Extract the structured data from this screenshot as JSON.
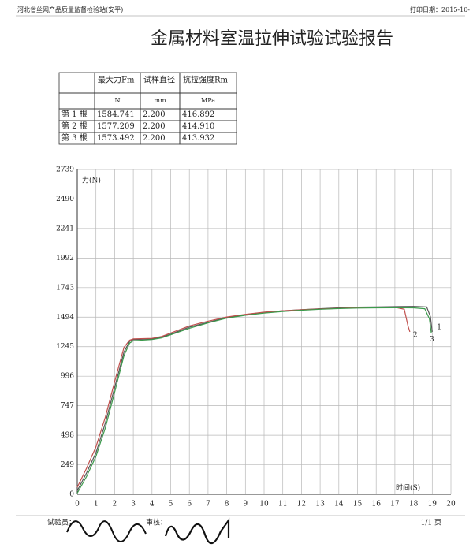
{
  "header": {
    "org": "河北省丝网产品质量监督检验站(安平)",
    "print_date": "打印日期：2015-10-"
  },
  "title": "金属材料室温拉伸试验试验报告",
  "table": {
    "header": [
      "最大力Fm",
      "试样直径",
      "抗拉强度Rm"
    ],
    "units": [
      "N",
      "mm",
      "MPa"
    ],
    "rows": [
      [
        "第 1 根",
        "1584.741",
        "2.200",
        "416.892"
      ],
      [
        "第 2 根",
        "1577.209",
        "2.200",
        "414.910"
      ],
      [
        "第 3 根",
        "1573.492",
        "2.200",
        "413.932"
      ]
    ]
  },
  "chart_data": {
    "type": "line",
    "y_label": "力(N)",
    "x_label": "时间(S)",
    "xlim": [
      0,
      20
    ],
    "xticks": [
      0,
      1,
      2,
      3,
      4,
      5,
      6,
      7,
      8,
      9,
      10,
      11,
      12,
      13,
      14,
      15,
      16,
      17,
      18,
      19,
      20
    ],
    "ylim": [
      0,
      2739
    ],
    "yticks": [
      0,
      249,
      498,
      747,
      996,
      1245,
      1494,
      1743,
      1992,
      2241,
      2490,
      2739
    ],
    "grid": true,
    "series": [
      {
        "name": "1",
        "color": "#555555",
        "x": [
          0,
          0.5,
          1,
          1.5,
          2,
          2.5,
          2.8,
          3,
          4,
          4.5,
          5,
          6,
          7,
          8,
          9,
          10,
          11,
          12,
          13,
          14,
          15,
          16,
          17,
          18,
          18.7,
          18.9,
          19
        ],
        "values": [
          30,
          180,
          350,
          600,
          900,
          1200,
          1290,
          1305,
          1310,
          1325,
          1350,
          1410,
          1450,
          1490,
          1515,
          1535,
          1548,
          1557,
          1565,
          1572,
          1578,
          1580,
          1582,
          1584,
          1580,
          1500,
          1370
        ]
      },
      {
        "name": "2",
        "color": "#c0504d",
        "x": [
          0,
          0.5,
          1,
          1.5,
          2,
          2.5,
          2.8,
          3,
          4,
          4.5,
          5,
          6,
          7,
          8,
          9,
          10,
          11,
          12,
          13,
          14,
          15,
          16,
          17,
          17.5,
          17.7,
          17.8
        ],
        "values": [
          60,
          220,
          400,
          650,
          950,
          1240,
          1300,
          1310,
          1315,
          1330,
          1360,
          1420,
          1460,
          1495,
          1518,
          1536,
          1548,
          1556,
          1562,
          1568,
          1574,
          1576,
          1577,
          1560,
          1420,
          1370
        ]
      },
      {
        "name": "3",
        "color": "#3c9a4c",
        "x": [
          0,
          0.5,
          1,
          1.5,
          2,
          2.5,
          2.8,
          3,
          4,
          4.5,
          5,
          6,
          7,
          8,
          9,
          10,
          11,
          12,
          13,
          14,
          15,
          16,
          17,
          18,
          18.6,
          18.85,
          18.95
        ],
        "values": [
          10,
          150,
          320,
          560,
          860,
          1170,
          1275,
          1295,
          1305,
          1318,
          1345,
          1400,
          1445,
          1485,
          1510,
          1528,
          1542,
          1552,
          1560,
          1566,
          1570,
          1572,
          1573,
          1572,
          1565,
          1480,
          1360
        ]
      }
    ]
  },
  "footer": {
    "tester": "试验员：",
    "reviewer": "审核：",
    "page": "1/1 页"
  }
}
